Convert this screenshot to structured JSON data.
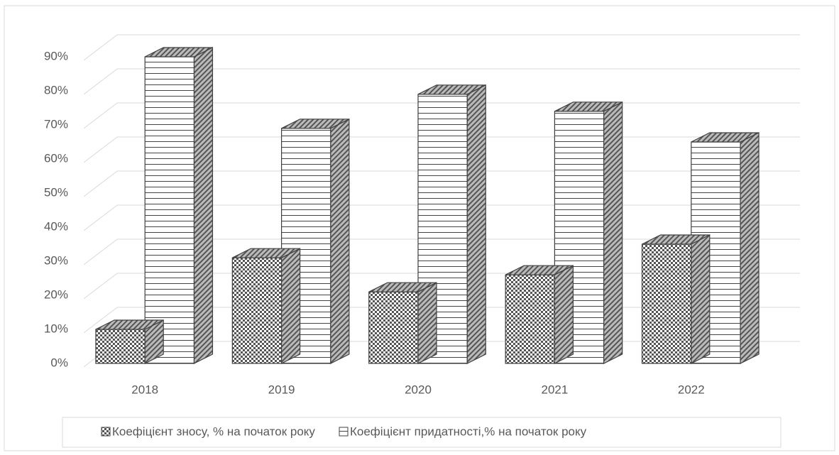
{
  "chart_data": {
    "type": "bar3d",
    "categories": [
      "2018",
      "2019",
      "2020",
      "2021",
      "2022"
    ],
    "series": [
      {
        "name": "Коефіцієнт зносу, % на початок року",
        "color": "#404040",
        "values": [
          10,
          31,
          21,
          26,
          35
        ]
      },
      {
        "name": "Коефіцієнт придатності,% на початок року",
        "color": "#404040",
        "values": [
          90,
          69,
          79,
          74,
          65
        ]
      }
    ],
    "ylim": [
      0,
      90
    ],
    "yticks": [
      {
        "value": 0,
        "label": "0%"
      },
      {
        "value": 10,
        "label": "10%"
      },
      {
        "value": 20,
        "label": "20%"
      },
      {
        "value": 30,
        "label": "30%"
      },
      {
        "value": 40,
        "label": "40%"
      },
      {
        "value": 50,
        "label": "50%"
      },
      {
        "value": 60,
        "label": "60%"
      },
      {
        "value": 70,
        "label": "70%"
      },
      {
        "value": 80,
        "label": "80%"
      },
      {
        "value": 90,
        "label": "90%"
      }
    ],
    "grid": true,
    "legend": "bottom"
  }
}
